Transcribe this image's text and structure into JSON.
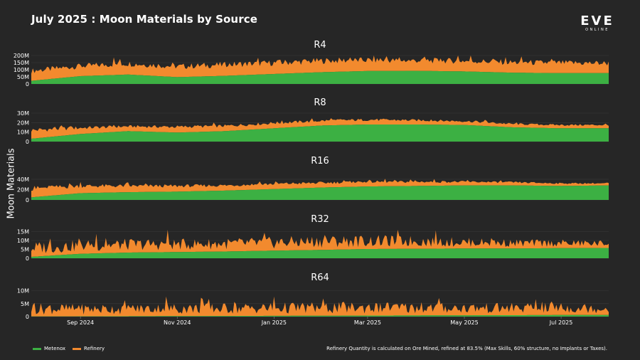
{
  "title": "July 2025 : Moon Materials by Source",
  "logo": {
    "main": "EVE",
    "sub": "ONLINE"
  },
  "ylabel": "Moon Materials",
  "legend": [
    {
      "label": "Metenox",
      "color": "#3cb043"
    },
    {
      "label": "Refinery",
      "color": "#f28a2e"
    }
  ],
  "footnote": "Refinery Quantity is calculated on Ore Mined, refined at 83.5% (Max Skills, 60% structure, no Implants or Taxes).",
  "colors": {
    "metenox": "#3cb043",
    "refinery": "#f28a2e",
    "background": "#262626",
    "grid": "#3a3a3a"
  },
  "chart_data": {
    "type": "area",
    "stacked": true,
    "x_range": [
      "2024-08-01",
      "2025-07-31"
    ],
    "x_ticks": [
      {
        "date": "2024-09-01",
        "label": "Sep 2024"
      },
      {
        "date": "2024-11-01",
        "label": "Nov 2024"
      },
      {
        "date": "2025-01-01",
        "label": "Jan 2025"
      },
      {
        "date": "2025-03-01",
        "label": "Mar 2025"
      },
      {
        "date": "2025-05-01",
        "label": "May 2025"
      },
      {
        "date": "2025-07-01",
        "label": "Jul 2025"
      }
    ],
    "series_names": [
      "Metenox",
      "Refinery"
    ],
    "panels": [
      {
        "title": "R4",
        "ylim": [
          0,
          200000000
        ],
        "yticks": [
          {
            "value": 0,
            "label": "0"
          },
          {
            "value": 50000000,
            "label": "50M"
          },
          {
            "value": 100000000,
            "label": "100M"
          },
          {
            "value": 150000000,
            "label": "150M"
          },
          {
            "value": 200000000,
            "label": "200M"
          }
        ],
        "dates": [
          "2024-08-01",
          "2024-09-01",
          "2024-10-01",
          "2024-11-01",
          "2024-12-01",
          "2025-01-01",
          "2025-02-01",
          "2025-03-01",
          "2025-04-01",
          "2025-05-01",
          "2025-06-01",
          "2025-07-01",
          "2025-07-31"
        ],
        "metenox": [
          22000000,
          55000000,
          66000000,
          48000000,
          57000000,
          70000000,
          83000000,
          91000000,
          92000000,
          88000000,
          79000000,
          76000000,
          76000000
        ],
        "refinery": [
          70000000,
          70000000,
          77000000,
          75000000,
          78000000,
          78000000,
          80000000,
          76000000,
          72000000,
          74000000,
          72000000,
          72000000,
          70000000
        ]
      },
      {
        "title": "R8",
        "ylim": [
          0,
          30000000
        ],
        "yticks": [
          {
            "value": 0,
            "label": "0"
          },
          {
            "value": 10000000,
            "label": "10M"
          },
          {
            "value": 20000000,
            "label": "20M"
          },
          {
            "value": 30000000,
            "label": "30M"
          }
        ],
        "dates": [
          "2024-08-01",
          "2024-09-01",
          "2024-10-01",
          "2024-11-01",
          "2024-12-01",
          "2025-01-01",
          "2025-02-01",
          "2025-03-01",
          "2025-04-01",
          "2025-05-01",
          "2025-06-01",
          "2025-07-01",
          "2025-07-31"
        ],
        "metenox": [
          3000000,
          8000000,
          11000000,
          9500000,
          11000000,
          14000000,
          17000000,
          18000000,
          18000000,
          17500000,
          15000000,
          14000000,
          14000000
        ],
        "refinery": [
          9000000,
          6500000,
          5000000,
          6000000,
          5500000,
          5500000,
          5000000,
          5000000,
          4500000,
          4000000,
          3500000,
          3500000,
          3500000
        ]
      },
      {
        "title": "R16",
        "ylim": [
          0,
          55000000
        ],
        "yticks": [
          {
            "value": 0,
            "label": "0"
          },
          {
            "value": 20000000,
            "label": "20M"
          },
          {
            "value": 40000000,
            "label": "40M"
          }
        ],
        "dates": [
          "2024-08-01",
          "2024-09-01",
          "2024-10-01",
          "2024-11-01",
          "2024-12-01",
          "2025-01-01",
          "2025-02-01",
          "2025-03-01",
          "2025-04-01",
          "2025-05-01",
          "2025-06-01",
          "2025-07-01",
          "2025-07-31"
        ],
        "metenox": [
          5000000,
          13000000,
          15000000,
          16000000,
          18000000,
          21000000,
          24000000,
          26000000,
          27000000,
          28000000,
          28000000,
          27000000,
          28000000
        ],
        "refinery": [
          17000000,
          14000000,
          12000000,
          11000000,
          10000000,
          10000000,
          9000000,
          9000000,
          8000000,
          7000000,
          6000000,
          5000000,
          4000000
        ]
      },
      {
        "title": "R32",
        "ylim": [
          0,
          16000000
        ],
        "yticks": [
          {
            "value": 0,
            "label": "0"
          },
          {
            "value": 5000000,
            "label": "5M"
          },
          {
            "value": 10000000,
            "label": "10M"
          },
          {
            "value": 15000000,
            "label": "15M"
          }
        ],
        "dates": [
          "2024-08-01",
          "2024-09-01",
          "2024-10-01",
          "2024-11-01",
          "2024-12-01",
          "2025-01-01",
          "2025-02-01",
          "2025-03-01",
          "2025-04-01",
          "2025-05-01",
          "2025-06-01",
          "2025-07-01",
          "2025-07-31"
        ],
        "metenox": [
          800000,
          2500000,
          3200000,
          3500000,
          3800000,
          4300000,
          4700000,
          5200000,
          5300000,
          5500000,
          5500000,
          5700000,
          5800000
        ],
        "refinery": [
          5000000,
          4500000,
          4500000,
          4300000,
          4300000,
          4500000,
          4800000,
          4500000,
          4300000,
          3500000,
          3000000,
          2800000,
          2500000
        ]
      },
      {
        "title": "R64",
        "ylim": [
          0,
          11000000
        ],
        "yticks": [
          {
            "value": 0,
            "label": "0"
          },
          {
            "value": 5000000,
            "label": "5M"
          },
          {
            "value": 10000000,
            "label": "10M"
          }
        ],
        "dates": [
          "2024-08-01",
          "2024-09-01",
          "2024-10-01",
          "2024-11-01",
          "2024-12-01",
          "2025-01-01",
          "2025-02-01",
          "2025-03-01",
          "2025-04-01",
          "2025-05-01",
          "2025-06-01",
          "2025-07-01",
          "2025-07-31"
        ],
        "metenox": [
          50000,
          100000,
          150000,
          200000,
          250000,
          300000,
          350000,
          400000,
          450000,
          500000,
          550000,
          600000,
          600000
        ],
        "refinery": [
          3000000,
          2800000,
          2800000,
          2900000,
          2900000,
          3000000,
          3100000,
          3000000,
          2900000,
          2800000,
          2700000,
          2700000,
          2600000
        ]
      }
    ]
  }
}
